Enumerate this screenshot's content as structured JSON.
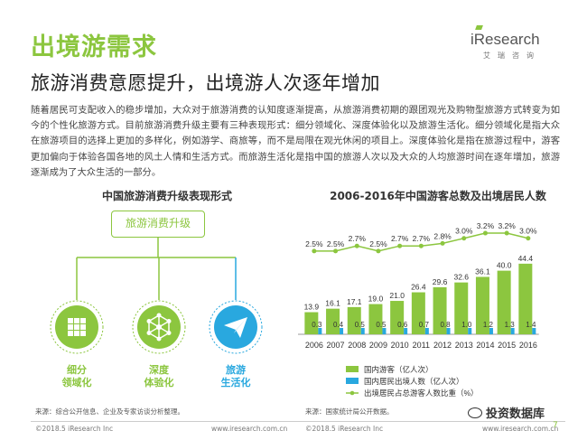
{
  "header": {
    "title": "出境游需求",
    "subtitle": "旅游消费意愿提升，出境游人次逐年增加",
    "logo": "iResearch",
    "logo_cn": "艾瑞咨询"
  },
  "paragraph": "随着居民可支配收入的稳步增加，大众对于旅游消费的认知度逐渐提高，从旅游消费初期的跟团观光及购物型旅游方式转变为如今的个性化旅游方式。目前旅游消费升级主要有三种表现形式：细分领域化、深度体验化以及旅游生活化。细分领域化是指大众在旅游项目的选择上更加的多样化，例如游学、商旅等，而不是局限在观光休闲的项目上。深度体验化是指在旅游过程中，游客更加偏向于体验各国各地的风土人情和生活方式。而旅游生活化是指中国的旅游人次以及大众的人均旅游时间在逐年增加，旅游逐渐成为了大众生活的一部分。",
  "left_panel": {
    "title": "中国旅游消费升级表现形式",
    "root": "旅游消费升级",
    "items": [
      {
        "line1": "细分",
        "line2": "领域化",
        "icon": "grid-icon",
        "color": "#8cc63f"
      },
      {
        "line1": "深度",
        "line2": "体验化",
        "icon": "cube-network-icon",
        "color": "#8cc63f"
      },
      {
        "line1": "旅游",
        "line2": "生活化",
        "icon": "paper-plane-icon",
        "color": "#29a8df"
      }
    ]
  },
  "chart_data": {
    "type": "bar",
    "title": "2006-2016年中国游客总数及出境居民人数",
    "categories": [
      "2006",
      "2007",
      "2008",
      "2009",
      "2010",
      "2011",
      "2012",
      "2013",
      "2014",
      "2015",
      "2016"
    ],
    "series": [
      {
        "name": "国内游客（亿人次）",
        "type": "bar",
        "color": "#8cc63f",
        "values": [
          13.9,
          16.1,
          17.1,
          19.0,
          21.0,
          26.4,
          29.6,
          32.6,
          36.1,
          40.0,
          44.4
        ]
      },
      {
        "name": "国内居民出境人数（亿人次）",
        "type": "bar",
        "color": "#29a8df",
        "values": [
          0.3,
          0.4,
          0.5,
          0.5,
          0.6,
          0.7,
          0.8,
          1.0,
          1.2,
          1.3,
          1.4
        ]
      },
      {
        "name": "出境居民占总游客人数比重（%）",
        "type": "line",
        "color": "#8cc63f",
        "values": [
          2.5,
          2.5,
          2.7,
          2.5,
          2.7,
          2.7,
          2.8,
          3.0,
          3.2,
          3.2,
          3.0
        ],
        "labels": [
          "2.5%",
          "2.5%",
          "2.7%",
          "2.5%",
          "2.7%",
          "2.7%",
          "2.8%",
          "3.0%",
          "3.2%",
          "3.2%",
          "3.0%"
        ]
      }
    ],
    "ylim": [
      0,
      50
    ],
    "line_ylim": [
      2.0,
      3.4
    ],
    "legend": "bottom",
    "grid": false
  },
  "sources": {
    "left": "来源：综合公开信息、企业及专家访谈分析整理。",
    "right": "来源：国家统计局公开数据。"
  },
  "footer": {
    "copy1": "©2018.5 iResearch Inc",
    "url1": "www.iresearch.com.cn",
    "copy2": "©2018.5 iResearch Inc",
    "url2": "www.iresearch.com.cn",
    "page": "7",
    "watermark": "投资数据库"
  }
}
